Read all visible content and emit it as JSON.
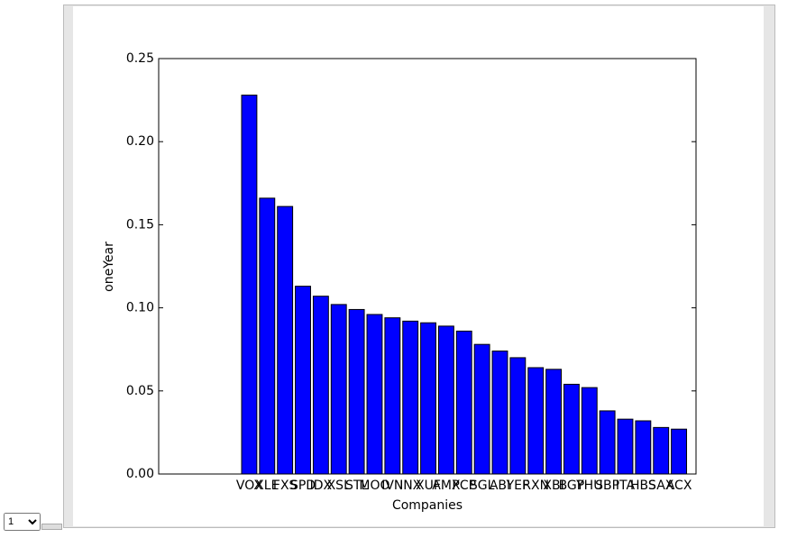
{
  "chart_data": {
    "type": "bar",
    "ylabel": "oneYear",
    "xlabel": "Companies",
    "categories": [
      "VOX",
      "XLE",
      "FXS",
      "SPD",
      "IDX",
      "XSL",
      "STL",
      "MOO",
      "IVN",
      "INX",
      "XUF",
      "AMX",
      "PCP",
      "SGL",
      "ABI",
      "YEF",
      "RXN",
      "XBI",
      "BGP",
      "YHU",
      "SBP",
      "ITA",
      "HBS",
      "SAX",
      "ACX"
    ],
    "values": [
      0.228,
      0.166,
      0.161,
      0.113,
      0.107,
      0.102,
      0.099,
      0.096,
      0.094,
      0.092,
      0.091,
      0.089,
      0.086,
      0.078,
      0.074,
      0.07,
      0.064,
      0.063,
      0.054,
      0.052,
      0.038,
      0.033,
      0.032,
      0.028,
      0.027
    ],
    "color": "#0000ff",
    "ylim": [
      0,
      0.25
    ],
    "yticks": [
      {
        "value": 0,
        "label": "0.00"
      },
      {
        "value": 0.05,
        "label": "0.05"
      },
      {
        "value": 0.1,
        "label": "0.10"
      },
      {
        "value": 0.15,
        "label": "0.15"
      },
      {
        "value": 0.2,
        "label": "0.20"
      },
      {
        "value": 0.25,
        "label": "0.25"
      }
    ],
    "grid": false
  },
  "selector": {
    "value": "1"
  }
}
